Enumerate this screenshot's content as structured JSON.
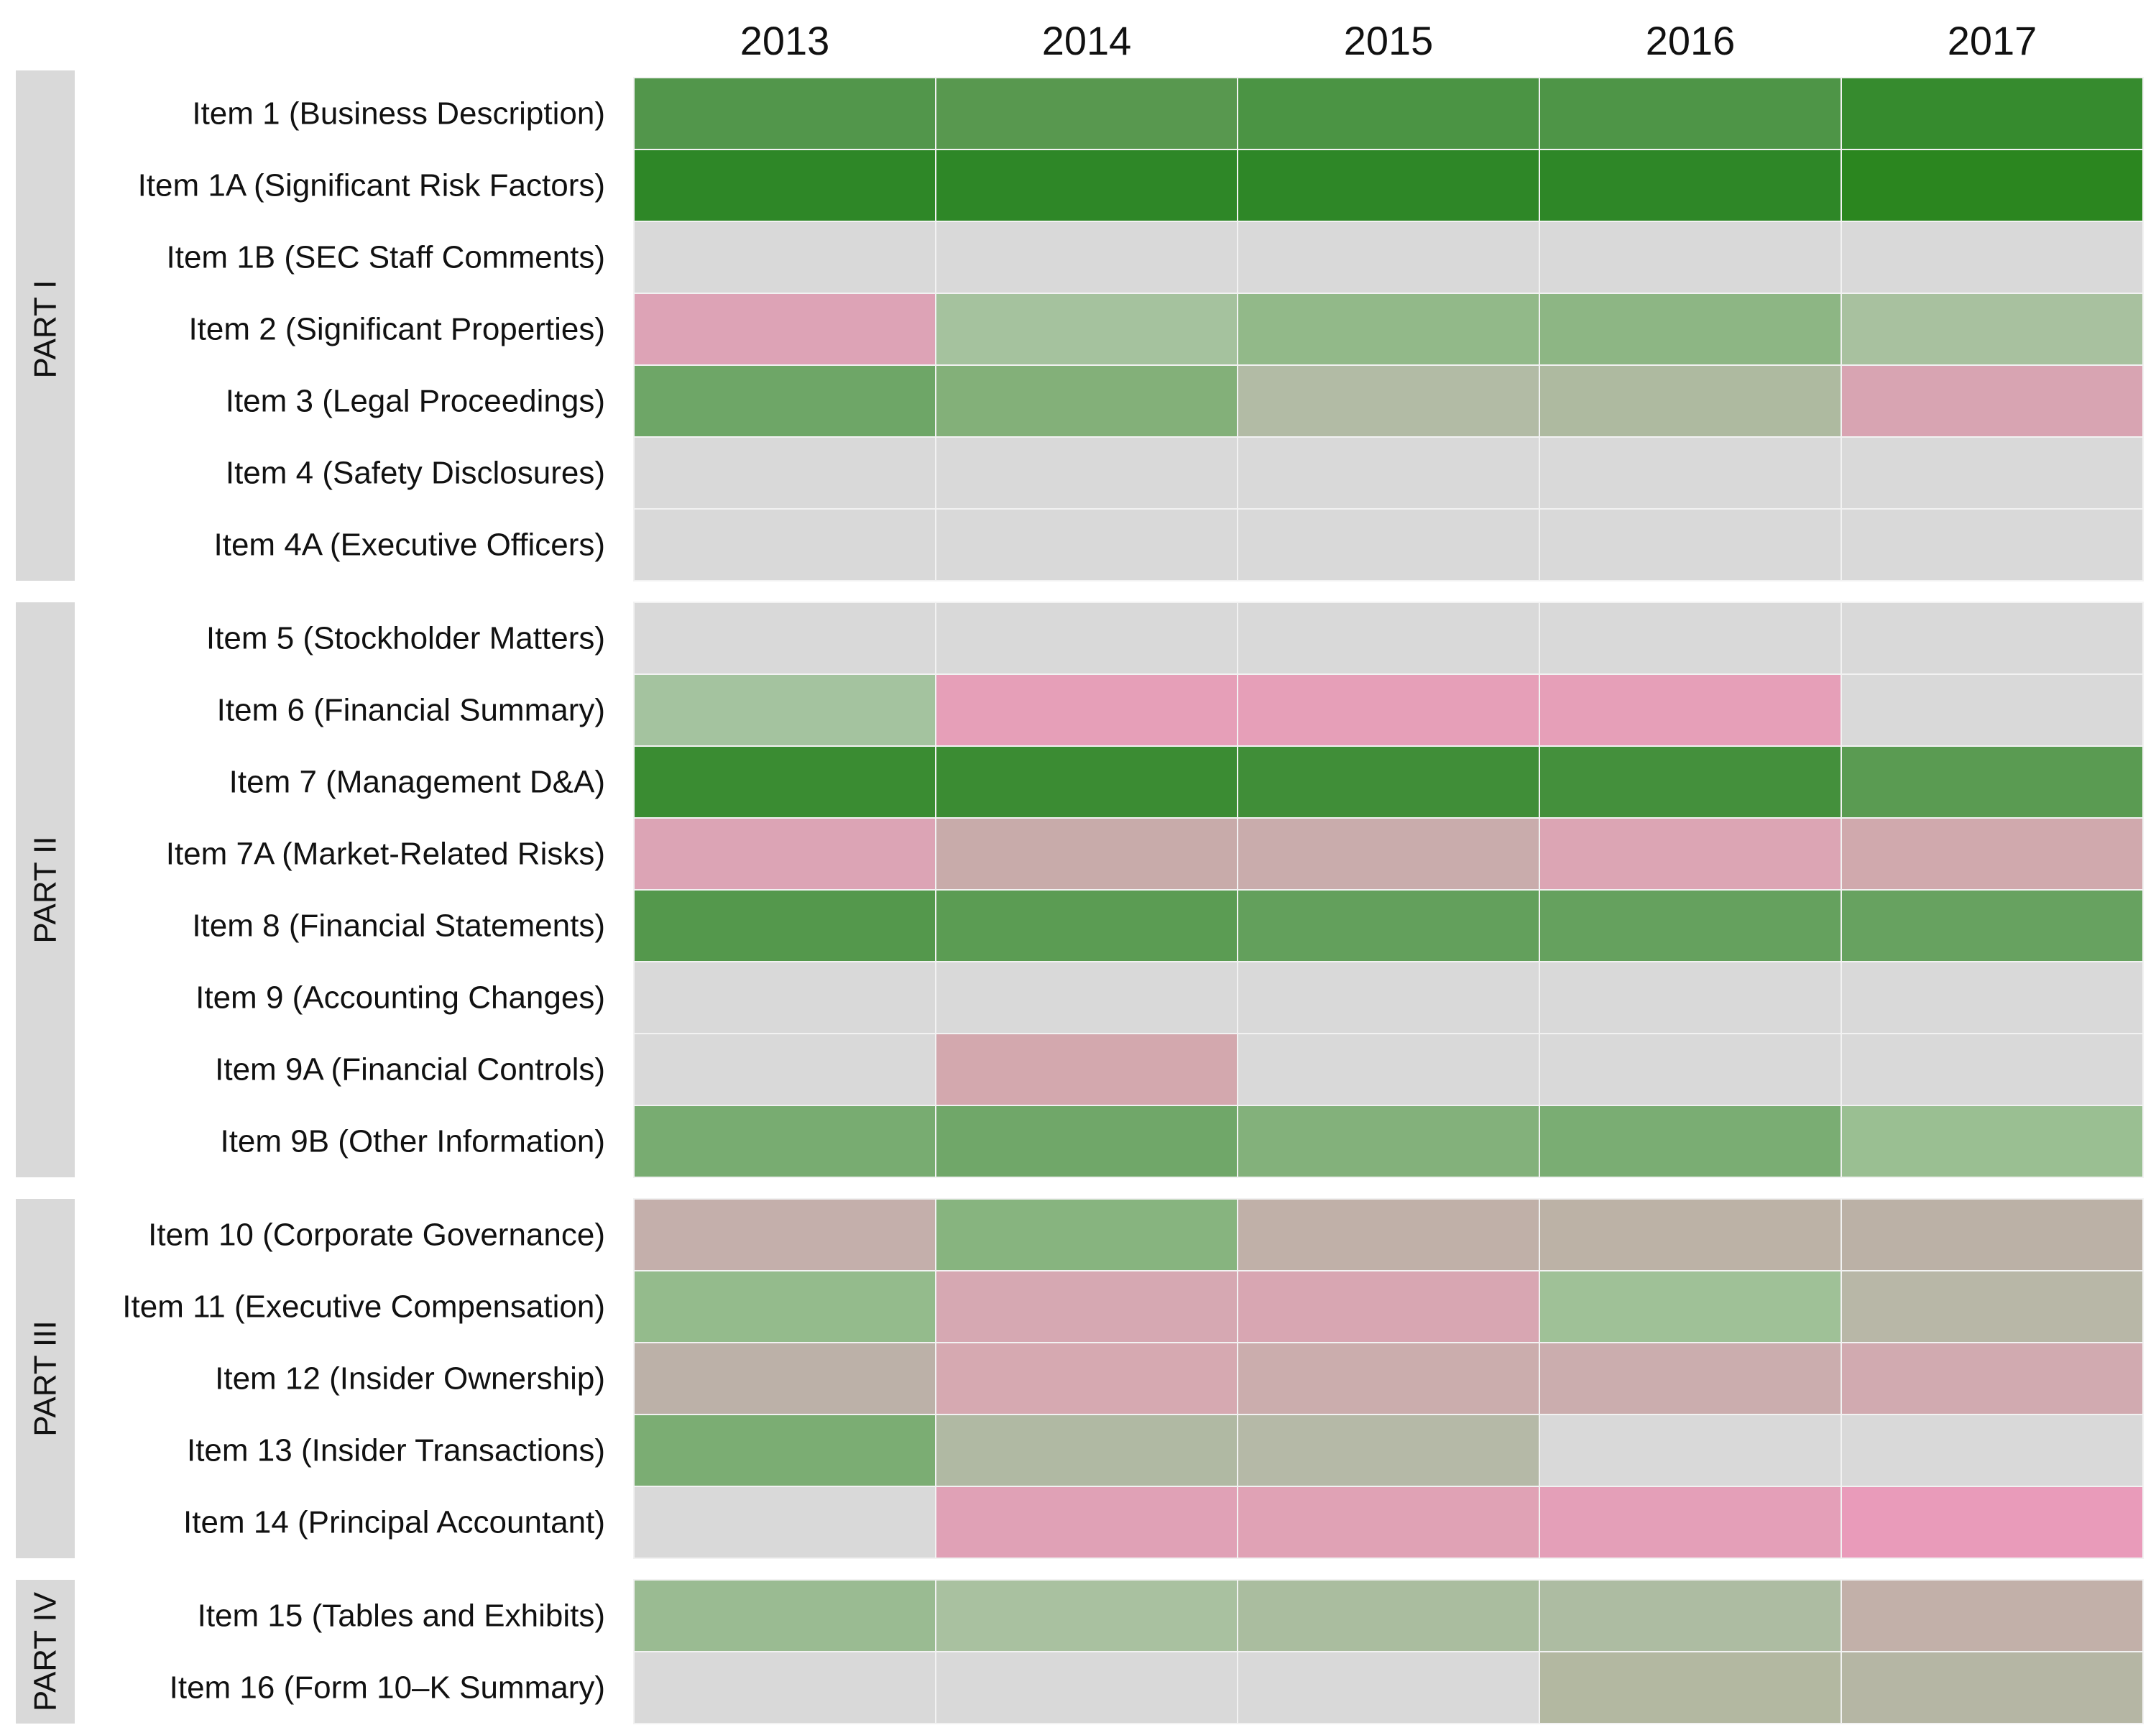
{
  "chart_data": {
    "type": "heatmap",
    "title": "",
    "columns": [
      "2013",
      "2014",
      "2015",
      "2016",
      "2017"
    ],
    "groups": [
      {
        "name": "PART I",
        "rows": [
          {
            "label": "Item 1 (Business Description)",
            "colors": [
              "#52964b",
              "#58984f",
              "#4b9444",
              "#4e9547",
              "#368b2e"
            ]
          },
          {
            "label": "Item 1A (Significant Risk Factors)",
            "colors": [
              "#2e8727",
              "#2e8727",
              "#2e8727",
              "#2e8727",
              "#2b861f"
            ]
          },
          {
            "label": "Item 1B (SEC Staff Comments)",
            "colors": [
              "#d9d9d9",
              "#d9d9d9",
              "#d9d9d9",
              "#d9d9d9",
              "#d9d9d9"
            ]
          },
          {
            "label": "Item 2 (Significant Properties)",
            "colors": [
              "#dda3b6",
              "#a5c29e",
              "#92b989",
              "#8db684",
              "#a8c19f"
            ]
          },
          {
            "label": "Item 3 (Legal Proceedings)",
            "colors": [
              "#6ea667",
              "#83b079",
              "#b2bba5",
              "#aebaa0",
              "#d8a4b2"
            ]
          },
          {
            "label": "Item 4 (Safety Disclosures)",
            "colors": [
              "#d9d9d9",
              "#d9d9d9",
              "#d9d9d9",
              "#d9d9d9",
              "#d9d9d9"
            ]
          },
          {
            "label": "Item 4A (Executive Officers)",
            "colors": [
              "#d9d9d9",
              "#d9d9d9",
              "#d9d9d9",
              "#d9d9d9",
              "#d9d9d9"
            ]
          }
        ]
      },
      {
        "name": "PART II",
        "rows": [
          {
            "label": "Item 5 (Stockholder Matters)",
            "colors": [
              "#d9d9d9",
              "#d9d9d9",
              "#d9d9d9",
              "#d9d9d9",
              "#d9d9d9"
            ]
          },
          {
            "label": "Item 6 (Financial Summary)",
            "colors": [
              "#a4c39f",
              "#e69fb8",
              "#e69fb8",
              "#e69fb8",
              "#d9d9d9"
            ]
          },
          {
            "label": "Item 7 (Management D&A)",
            "colors": [
              "#3a8c32",
              "#3b8c33",
              "#408e38",
              "#44903c",
              "#5a9b52"
            ]
          },
          {
            "label": "Item 7A (Market-Related Risks)",
            "colors": [
              "#dca4b5",
              "#c8abaa",
              "#c9acac",
              "#dca5b4",
              "#d0a9ad"
            ]
          },
          {
            "label": "Item 8 (Financial Statements)",
            "colors": [
              "#54984c",
              "#5b9c53",
              "#63a05c",
              "#65a15e",
              "#67a260"
            ]
          },
          {
            "label": "Item 9 (Accounting Changes)",
            "colors": [
              "#d9d9d9",
              "#d9d9d9",
              "#d9d9d9",
              "#d9d9d9",
              "#d9d9d9"
            ]
          },
          {
            "label": "Item 9A (Financial Controls)",
            "colors": [
              "#d9d9d9",
              "#d3a8ae",
              "#d9d9d9",
              "#d9d9d9",
              "#d9d9d9"
            ]
          },
          {
            "label": "Item 9B (Other Information)",
            "colors": [
              "#78ac71",
              "#70a769",
              "#83b17b",
              "#7aad73",
              "#9abf92"
            ]
          }
        ]
      },
      {
        "name": "PART III",
        "rows": [
          {
            "label": "Item 10 (Corporate Governance)",
            "colors": [
              "#c4afab",
              "#87b47f",
              "#c0b0a8",
              "#bcb2a6",
              "#bbb1a6"
            ]
          },
          {
            "label": "Item 11 (Executive Compensation)",
            "colors": [
              "#94bb8c",
              "#d6a8b2",
              "#d8a6b2",
              "#9fc197",
              "#b8b7a7"
            ]
          },
          {
            "label": "Item 12 (Insider Ownership)",
            "colors": [
              "#bcb1a8",
              "#d6a9b1",
              "#cbadad",
              "#cbadae",
              "#d1aab0"
            ]
          },
          {
            "label": "Item 13 (Insider Transactions)",
            "colors": [
              "#7bad73",
              "#b0b9a3",
              "#b5b9a7",
              "#d9d9d9",
              "#d9d9d9"
            ]
          },
          {
            "label": "Item 14 (Principal Accountant)",
            "colors": [
              "#d9d9d9",
              "#e0a1b6",
              "#e0a2b5",
              "#e49fb8",
              "#e99bba"
            ]
          }
        ]
      },
      {
        "name": "PART IV",
        "rows": [
          {
            "label": "Item 15 (Tables and Exhibits)",
            "colors": [
              "#9abb92",
              "#a9c1a0",
              "#aabd9f",
              "#adbca2",
              "#c2b0a9"
            ]
          },
          {
            "label": "Item 16 (Form 10–K Summary)",
            "colors": [
              "#d9d9d9",
              "#d9d9d9",
              "#d9d9d9",
              "#b3b8a1",
              "#b5b6a4"
            ]
          }
        ]
      }
    ]
  }
}
